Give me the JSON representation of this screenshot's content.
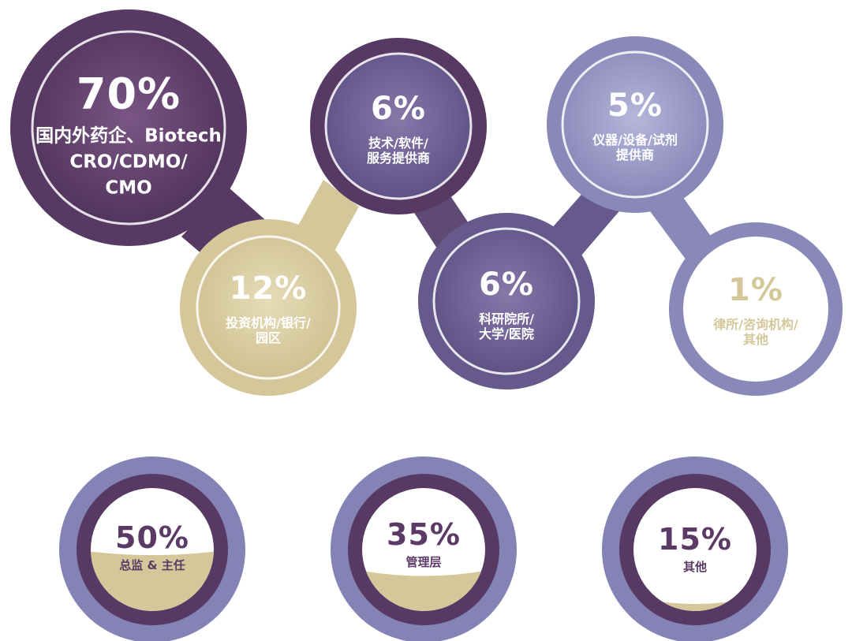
{
  "top_circles": [
    {
      "id": "pharma",
      "percent": "70%",
      "label_lines": [
        "国内外药企、Biotech",
        "CRO/CDMO/",
        "CMO"
      ]
    },
    {
      "id": "investment",
      "percent": "12%",
      "label_lines": [
        "投资机构/银行/",
        "园区"
      ]
    },
    {
      "id": "tech",
      "percent": "6%",
      "label_lines": [
        "技术/软件/",
        "服务提供商"
      ]
    },
    {
      "id": "research",
      "percent": "6%",
      "label_lines": [
        "科研院所/",
        "大学/医院"
      ]
    },
    {
      "id": "instrument",
      "percent": "5%",
      "label_lines": [
        "仪器/设备/试剂",
        "提供商"
      ]
    },
    {
      "id": "legal",
      "percent": "1%",
      "label_lines": [
        "律所/咨询机构/",
        "其他"
      ]
    }
  ],
  "bottom_circles": [
    {
      "id": "director",
      "percent": "50%",
      "label": "总监 & 主任",
      "fill_fraction": 0.5
    },
    {
      "id": "management",
      "percent": "35%",
      "label": "管理层",
      "fill_fraction": 0.35
    },
    {
      "id": "other",
      "percent": "15%",
      "label": "其他",
      "fill_fraction": 0.15
    }
  ],
  "colors": {
    "dark_purple": "#573a63",
    "medium_purple": "#655a8b",
    "light_purple": "#8a88b8",
    "tan": "#d4c89a",
    "ring_purple": "#8583b6"
  }
}
